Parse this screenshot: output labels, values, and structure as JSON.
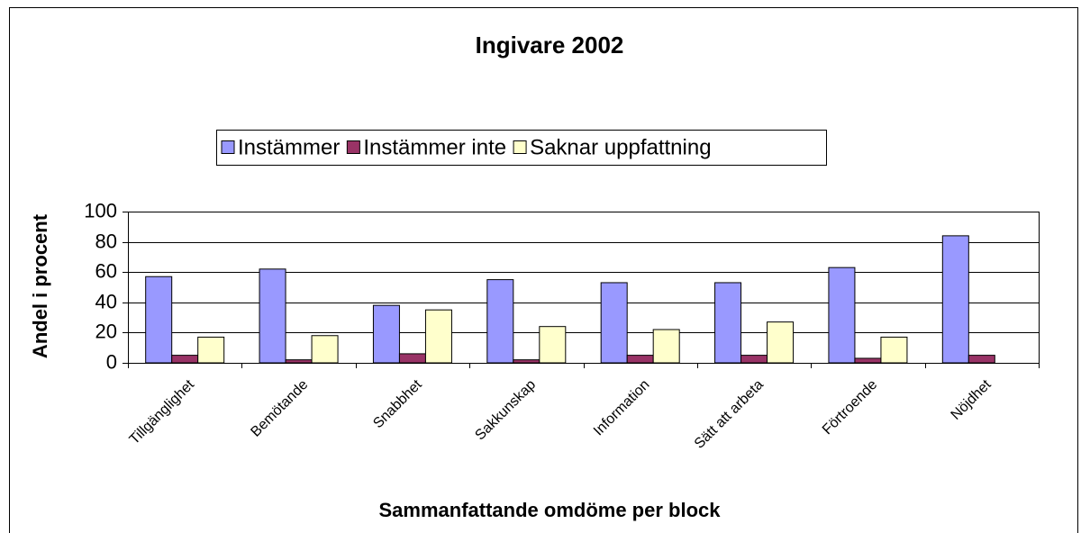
{
  "chart_data": {
    "type": "bar",
    "title": "Ingivare 2002",
    "x_label": "Sammanfattande omdöme per block",
    "y_label": "Andel i procent",
    "categories": [
      "Tillgänglighet",
      "Bemötande",
      "Snabbhet",
      "Sakkunskap",
      "Information",
      "Sätt att arbeta",
      "Förtroende",
      "Nöjdhet"
    ],
    "series": [
      {
        "name": "Instämmer",
        "color": "#9999ff",
        "values": [
          57,
          62,
          38,
          55,
          53,
          53,
          63,
          84
        ]
      },
      {
        "name": "Instämmer inte",
        "color": "#993366",
        "values": [
          5,
          2,
          6,
          2,
          5,
          5,
          3,
          5
        ]
      },
      {
        "name": "Saknar uppfattning",
        "color": "#ffffcc",
        "values": [
          17,
          18,
          35,
          24,
          22,
          27,
          17,
          0
        ]
      }
    ],
    "ylim": [
      0,
      100
    ],
    "yticks": [
      0,
      20,
      40,
      60,
      80,
      100
    ],
    "grid": true,
    "legend": "top"
  }
}
